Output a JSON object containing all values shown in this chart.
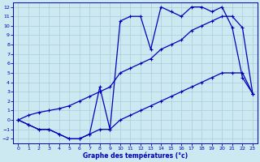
{
  "title": "Graphe des températures (°c)",
  "bg_color": "#cce8f0",
  "grid_color": "#aaccd8",
  "line_color": "#0000bb",
  "xlim": [
    -0.5,
    23.5
  ],
  "ylim": [
    -2.5,
    12.5
  ],
  "xticks": [
    0,
    1,
    2,
    3,
    4,
    5,
    6,
    7,
    8,
    9,
    10,
    11,
    12,
    13,
    14,
    15,
    16,
    17,
    18,
    19,
    20,
    21,
    22,
    23
  ],
  "yticks": [
    -2,
    -1,
    0,
    1,
    2,
    3,
    4,
    5,
    6,
    7,
    8,
    9,
    10,
    11,
    12
  ],
  "line1_x": [
    0,
    1,
    2,
    3,
    4,
    5,
    6,
    7,
    8,
    9,
    10,
    11,
    12,
    13,
    14,
    15,
    16,
    17,
    18,
    19,
    20,
    21,
    22,
    23
  ],
  "line1_y": [
    0,
    -0.5,
    -1,
    -1,
    -1.5,
    -2,
    -2,
    -1.5,
    -1,
    -1,
    0,
    0.5,
    1,
    1.5,
    2,
    2.5,
    3,
    3.5,
    4,
    4.5,
    5,
    5,
    5,
    2.8
  ],
  "line2_x": [
    0,
    1,
    2,
    3,
    4,
    5,
    6,
    7,
    8,
    9,
    10,
    11,
    12,
    13,
    14,
    15,
    16,
    17,
    18,
    19,
    20,
    21,
    22,
    23
  ],
  "line2_y": [
    0,
    -0.5,
    -1,
    -1,
    -1.5,
    -2,
    -2,
    -1.5,
    3.5,
    -1,
    10.5,
    11,
    11,
    7.5,
    12,
    11.5,
    11,
    12,
    12,
    11.5,
    12,
    9.8,
    4.5,
    2.8
  ],
  "line3_x": [
    0,
    1,
    2,
    3,
    4,
    5,
    6,
    7,
    8,
    9,
    10,
    11,
    12,
    13,
    14,
    15,
    16,
    17,
    18,
    19,
    20,
    21,
    22,
    23
  ],
  "line3_y": [
    0,
    0.5,
    0.8,
    1,
    1.2,
    1.5,
    2,
    2.5,
    3,
    3.5,
    5,
    5.5,
    6,
    6.5,
    7.5,
    8,
    8.5,
    9.5,
    10,
    10.5,
    11,
    11,
    9.8,
    2.8
  ]
}
